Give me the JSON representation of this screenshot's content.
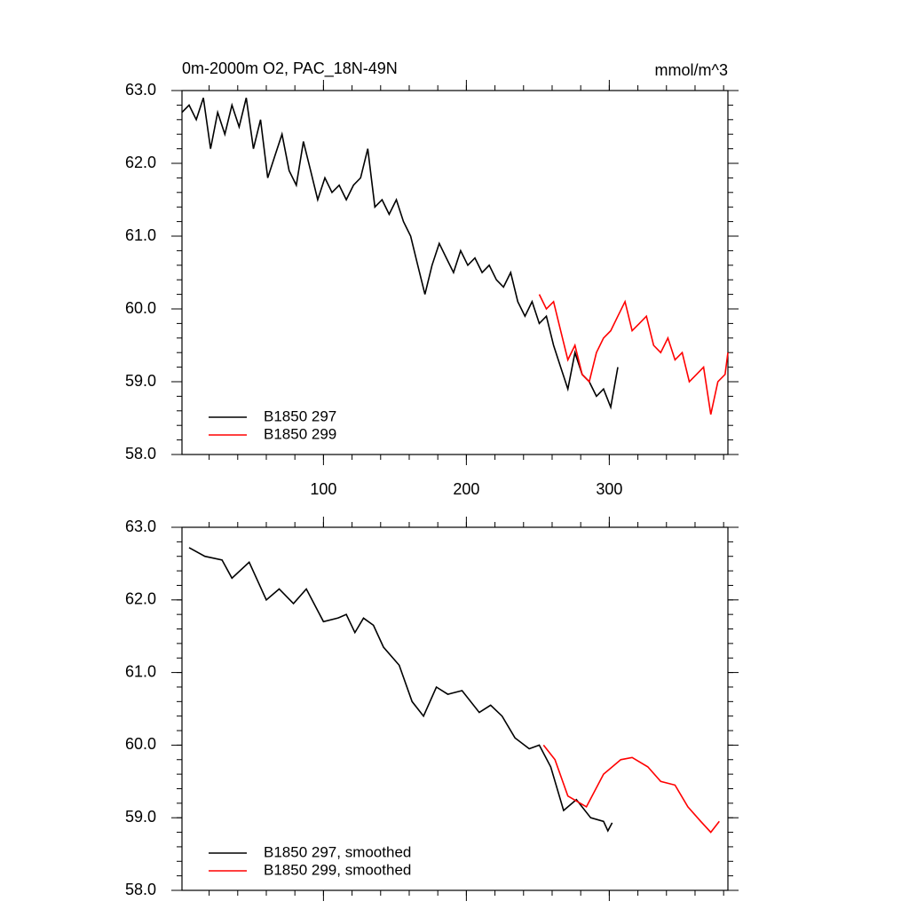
{
  "chart_data": [
    {
      "type": "line",
      "title": "0m-2000m O2, PAC_18N-49N",
      "units": "mmol/m^3",
      "xlim": [
        1,
        383
      ],
      "xticks": [
        100,
        200,
        300
      ],
      "xtick_labels": true,
      "xminor_step": 20,
      "ylim": [
        58,
        63
      ],
      "yticks": [
        {
          "value": 58,
          "label": "58.0"
        },
        {
          "value": 59,
          "label": "59.0"
        },
        {
          "value": 60,
          "label": "60.0"
        },
        {
          "value": 61,
          "label": "61.0"
        },
        {
          "value": 62,
          "label": "62.0"
        },
        {
          "value": 63,
          "label": "63.0"
        }
      ],
      "yminor_step": 0.2,
      "legend": "lower left",
      "series": [
        {
          "name": "B1850 297",
          "color": "#000000",
          "x": [
            1,
            6,
            11,
            16,
            21,
            26,
            31,
            36,
            41,
            46,
            51,
            56,
            61,
            66,
            71,
            76,
            81,
            86,
            91,
            96,
            101,
            106,
            111,
            116,
            121,
            126,
            131,
            136,
            141,
            146,
            151,
            156,
            161,
            166,
            171,
            176,
            181,
            186,
            191,
            196,
            201,
            206,
            211,
            216,
            221,
            226,
            231,
            236,
            241,
            246,
            251,
            256,
            261,
            266,
            271,
            276,
            281,
            286,
            291,
            296,
            301,
            306
          ],
          "values": [
            62.7,
            62.8,
            62.6,
            62.9,
            62.2,
            62.7,
            62.4,
            62.8,
            62.5,
            62.9,
            62.2,
            62.6,
            61.8,
            62.1,
            62.4,
            61.9,
            61.7,
            62.3,
            61.9,
            61.5,
            61.8,
            61.6,
            61.7,
            61.5,
            61.7,
            61.8,
            62.2,
            61.4,
            61.5,
            61.3,
            61.5,
            61.2,
            61.0,
            60.6,
            60.2,
            60.6,
            60.9,
            60.7,
            60.5,
            60.8,
            60.6,
            60.7,
            60.5,
            60.6,
            60.4,
            60.3,
            60.5,
            60.1,
            59.9,
            60.1,
            59.8,
            59.9,
            59.5,
            59.2,
            58.9,
            59.4,
            59.1,
            59.0,
            58.8,
            58.9,
            58.65,
            59.2
          ]
        },
        {
          "name": "B1850 299",
          "color": "#ff0000",
          "x": [
            251,
            256,
            261,
            266,
            271,
            276,
            281,
            286,
            291,
            296,
            301,
            306,
            311,
            316,
            321,
            326,
            331,
            336,
            341,
            346,
            351,
            356,
            361,
            366,
            371,
            376,
            381,
            383
          ],
          "values": [
            60.2,
            60.0,
            60.1,
            59.7,
            59.3,
            59.5,
            59.1,
            59.0,
            59.4,
            59.6,
            59.7,
            59.9,
            60.1,
            59.7,
            59.8,
            59.9,
            59.5,
            59.4,
            59.6,
            59.3,
            59.4,
            59.0,
            59.1,
            59.2,
            58.55,
            59.0,
            59.1,
            59.4
          ]
        }
      ]
    },
    {
      "type": "line",
      "xlim": [
        1,
        383
      ],
      "xticks": [
        100,
        200,
        300
      ],
      "xtick_labels": false,
      "xminor_step": 20,
      "ylim": [
        58,
        63
      ],
      "yticks": [
        {
          "value": 58,
          "label": "58.0"
        },
        {
          "value": 59,
          "label": "59.0"
        },
        {
          "value": 60,
          "label": "60.0"
        },
        {
          "value": 61,
          "label": "61.0"
        },
        {
          "value": 62,
          "label": "62.0"
        },
        {
          "value": 63,
          "label": "63.0"
        }
      ],
      "yminor_step": 0.2,
      "legend": "lower left",
      "series": [
        {
          "name": "B1850 297, smoothed",
          "color": "#000000",
          "x": [
            6,
            17,
            29,
            36,
            48,
            60,
            69,
            79,
            88,
            100,
            110,
            116,
            122,
            128,
            135,
            142,
            153,
            162,
            170,
            179,
            187,
            197,
            209,
            217,
            225,
            234,
            244,
            251,
            259,
            268,
            277,
            287,
            296,
            299,
            302
          ],
          "values": [
            62.72,
            62.6,
            62.55,
            62.3,
            62.52,
            62.0,
            62.15,
            61.95,
            62.15,
            61.7,
            61.75,
            61.8,
            61.55,
            61.75,
            61.65,
            61.35,
            61.1,
            60.6,
            60.4,
            60.8,
            60.7,
            60.75,
            60.45,
            60.55,
            60.4,
            60.1,
            59.95,
            60.0,
            59.7,
            59.1,
            59.25,
            59.0,
            58.95,
            58.82,
            58.93
          ]
        },
        {
          "name": "B1850 299, smoothed",
          "color": "#ff0000",
          "x": [
            254,
            262,
            271,
            284,
            296,
            308,
            316,
            327,
            336,
            346,
            355,
            364,
            371,
            377
          ],
          "values": [
            60.0,
            59.8,
            59.3,
            59.15,
            59.6,
            59.8,
            59.83,
            59.7,
            59.5,
            59.45,
            59.15,
            58.95,
            58.8,
            58.95
          ]
        }
      ]
    }
  ]
}
